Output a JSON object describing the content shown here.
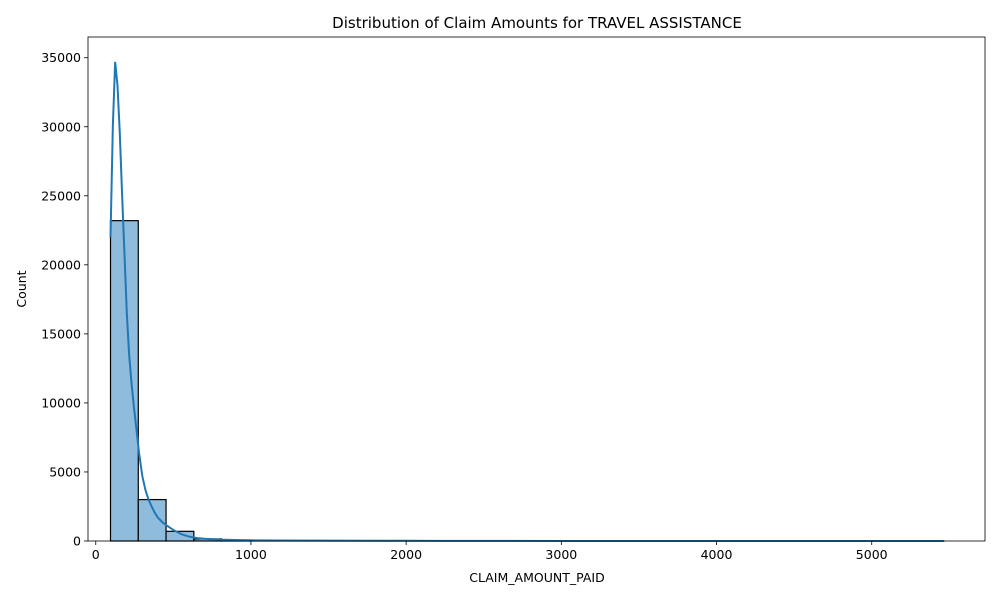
{
  "chart_data": {
    "type": "histogram",
    "title": "Distribution of Claim Amounts for TRAVEL ASSISTANCE",
    "xlabel": "CLAIM_AMOUNT_PAID",
    "ylabel": "Count",
    "xlim": [
      -50,
      5730
    ],
    "ylim": [
      0,
      36500
    ],
    "xticks": [
      0,
      1000,
      2000,
      3000,
      4000,
      5000
    ],
    "yticks": [
      0,
      5000,
      10000,
      15000,
      20000,
      25000,
      30000,
      35000
    ],
    "bins": [
      {
        "x0": 95,
        "x1": 274,
        "count": 23200
      },
      {
        "x0": 274,
        "x1": 453,
        "count": 3000
      },
      {
        "x0": 453,
        "x1": 632,
        "count": 700
      },
      {
        "x0": 632,
        "x1": 811,
        "count": 150
      },
      {
        "x0": 811,
        "x1": 990,
        "count": 60
      },
      {
        "x0": 990,
        "x1": 1169,
        "count": 30
      },
      {
        "x0": 1169,
        "x1": 1348,
        "count": 20
      },
      {
        "x0": 1348,
        "x1": 1527,
        "count": 12
      },
      {
        "x0": 1527,
        "x1": 1706,
        "count": 8
      },
      {
        "x0": 1706,
        "x1": 1885,
        "count": 5
      },
      {
        "x0": 1885,
        "x1": 2064,
        "count": 15
      },
      {
        "x0": 2064,
        "x1": 2243,
        "count": 4
      },
      {
        "x0": 2243,
        "x1": 2422,
        "count": 3
      },
      {
        "x0": 2422,
        "x1": 2601,
        "count": 2
      },
      {
        "x0": 2601,
        "x1": 2780,
        "count": 1
      },
      {
        "x0": 2780,
        "x1": 2959,
        "count": 1
      },
      {
        "x0": 2959,
        "x1": 3138,
        "count": 1
      },
      {
        "x0": 3138,
        "x1": 3317,
        "count": 1
      },
      {
        "x0": 3317,
        "x1": 3496,
        "count": 0
      },
      {
        "x0": 3496,
        "x1": 3675,
        "count": 1
      },
      {
        "x0": 3675,
        "x1": 3854,
        "count": 0
      },
      {
        "x0": 3854,
        "x1": 4033,
        "count": 1
      },
      {
        "x0": 4033,
        "x1": 4212,
        "count": 0
      },
      {
        "x0": 4212,
        "x1": 4391,
        "count": 0
      },
      {
        "x0": 4391,
        "x1": 4570,
        "count": 0
      },
      {
        "x0": 4570,
        "x1": 4749,
        "count": 1
      },
      {
        "x0": 4749,
        "x1": 4928,
        "count": 0
      },
      {
        "x0": 4928,
        "x1": 5107,
        "count": 0
      },
      {
        "x0": 5107,
        "x1": 5286,
        "count": 0
      },
      {
        "x0": 5286,
        "x1": 5465,
        "count": 1
      }
    ],
    "kde": {
      "x": [
        95,
        110,
        125,
        140,
        155,
        170,
        185,
        200,
        215,
        230,
        245,
        260,
        280,
        300,
        320,
        340,
        360,
        380,
        400,
        430,
        460,
        500,
        550,
        600,
        650,
        700,
        800,
        900,
        1000,
        1200,
        1500,
        1800,
        2000,
        2200,
        2500,
        3000,
        3500,
        4000,
        4500,
        5000,
        5465
      ],
      "y": [
        22000,
        30000,
        34700,
        33000,
        29500,
        25000,
        20800,
        16500,
        13500,
        11500,
        9800,
        8300,
        6300,
        4700,
        3700,
        3000,
        2500,
        2050,
        1700,
        1350,
        1100,
        800,
        500,
        320,
        220,
        160,
        100,
        70,
        50,
        35,
        25,
        15,
        20,
        10,
        6,
        4,
        3,
        2,
        2,
        1,
        1
      ]
    },
    "bar_fill": "#8fbbdc",
    "bar_edge": "#000000",
    "line_color": "#1f77b4"
  }
}
